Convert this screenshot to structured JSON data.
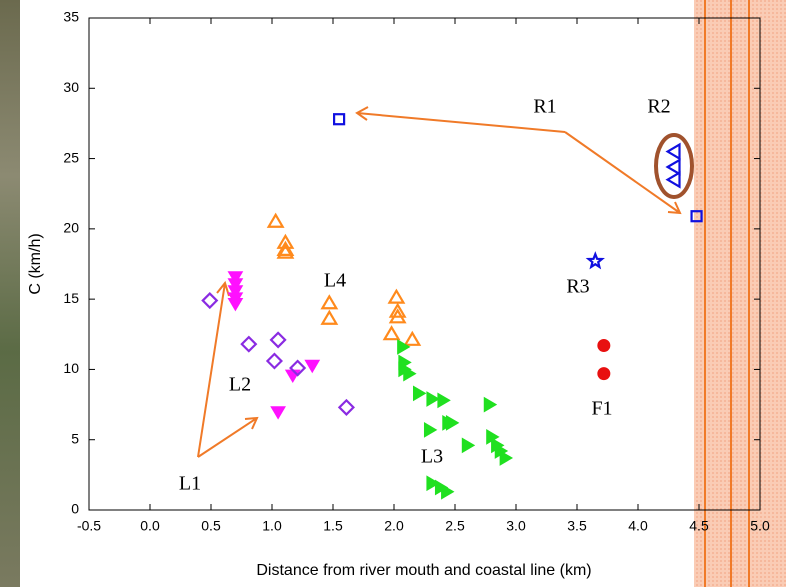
{
  "chart_data": {
    "type": "scatter",
    "x_label": "Distance from river mouth and coastal line (km)",
    "y_label": "C (km/h)",
    "xlim": [
      -0.5,
      5.0
    ],
    "xticks": [
      -0.5,
      {
        "value": 0,
        "label": "0.0"
      },
      0.5,
      {
        "value": 1,
        "label": "1.0"
      },
      1.5,
      {
        "value": 2,
        "label": "2.0"
      },
      2.5,
      {
        "value": 3,
        "label": "3.0"
      },
      3.5,
      {
        "value": 4,
        "label": "4.0"
      },
      4.5,
      {
        "value": 5,
        "label": "5.0"
      }
    ],
    "ylim": [
      0,
      35
    ],
    "yticks": [
      0,
      5,
      10,
      15,
      20,
      25,
      30,
      35
    ],
    "series": [
      {
        "color": "#1010e0",
        "marker": "square",
        "filled": false,
        "x": [
          1.55,
          4.48
        ],
        "values": [
          27.8,
          20.9
        ]
      },
      {
        "color": "#1010e0",
        "marker": "triangle-left",
        "filled": false,
        "x": [
          4.3,
          4.3,
          4.3
        ],
        "values": [
          25.5,
          24.4,
          23.5
        ]
      },
      {
        "color": "#1010e0",
        "marker": "star",
        "filled": false,
        "x": [
          3.65
        ],
        "values": [
          17.7
        ]
      },
      {
        "color": "#e81010",
        "marker": "circle",
        "filled": true,
        "x": [
          3.72,
          3.72
        ],
        "values": [
          11.7,
          9.7
        ]
      },
      {
        "color": "#ff8a1c",
        "marker": "triangle-up",
        "filled": false,
        "x": [
          1.03,
          1.11,
          1.11,
          1.11,
          1.47,
          1.47,
          2.02,
          2.03,
          2.03,
          1.98,
          2.15
        ],
        "values": [
          20.5,
          19.0,
          18.5,
          18.3,
          14.7,
          13.6,
          15.1,
          14.1,
          13.7,
          12.5,
          12.1
        ]
      },
      {
        "color": "#ff10ff",
        "marker": "triangle-down",
        "filled": true,
        "x": [
          0.7,
          0.7,
          0.7,
          0.7,
          0.7,
          1.05,
          1.17,
          1.33
        ],
        "values": [
          16.6,
          16.1,
          15.6,
          15.1,
          14.7,
          7.0,
          9.6,
          10.3
        ]
      },
      {
        "color": "#8a2be2",
        "marker": "diamond",
        "filled": false,
        "x": [
          0.49,
          0.81,
          1.05,
          1.02,
          1.21,
          1.61
        ],
        "values": [
          14.9,
          11.8,
          12.1,
          10.6,
          10.1,
          7.3
        ]
      },
      {
        "color": "#20e020",
        "marker": "triangle-right",
        "filled": true,
        "x": [
          2.07,
          2.08,
          2.08,
          2.12,
          2.2,
          2.31,
          2.4,
          2.29,
          2.44,
          2.47,
          2.6,
          2.78,
          2.8,
          2.84,
          2.87,
          2.91,
          2.31,
          2.38,
          2.43
        ],
        "values": [
          11.6,
          10.5,
          10.0,
          9.7,
          8.3,
          7.9,
          7.8,
          5.7,
          6.2,
          6.2,
          4.6,
          7.5,
          5.2,
          4.6,
          4.2,
          3.7,
          1.9,
          1.6,
          1.3
        ]
      }
    ],
    "annotations": [
      "R1",
      "R2",
      "R3",
      "F1",
      "L4",
      "L2",
      "L3",
      "L1"
    ]
  }
}
